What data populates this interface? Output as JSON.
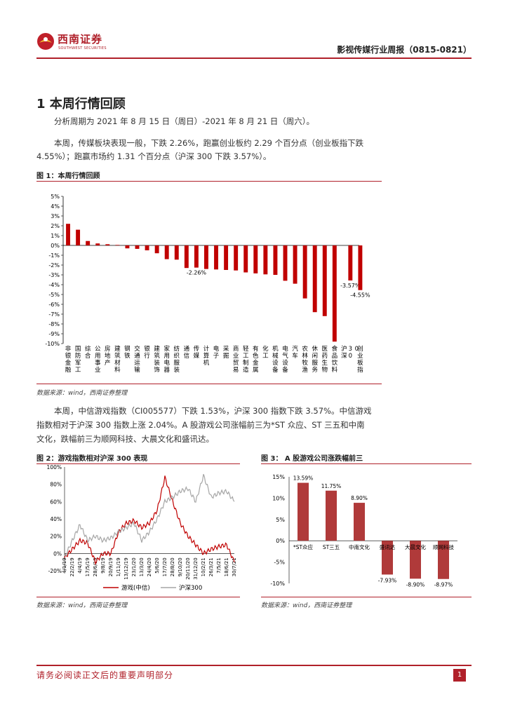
{
  "header": {
    "logo_cn": "西南证券",
    "logo_en": "SOUTHWEST SECURITIES",
    "report_title": "影视传媒行业周报（0815-0821）"
  },
  "section": {
    "title": "1 本周行情回顾",
    "para1": "分析周期为 2021 年 8 月 15 日（周日）-2021 年 8 月 21 日（周六）。",
    "para2_l1": "本周，传媒板块表现一般，下跌 2.26%，跑赢创业板约 2.29 个百分点（创业板指下跌",
    "para2_l2": "4.55%）；跑赢市场约 1.31 个百分点（沪深 300 下跌 3.57%）。",
    "para3_l1": "本周，中信游戏指数（CI005577）下跌 1.53%，沪深 300 指数下跌 3.57%。中信游戏",
    "para3_l2": "指数相对于沪深 300 指数上涨 2.04%。A 股游戏公司涨幅前三为*ST 众应、ST 三五和中南",
    "para3_l3": "文化，跌幅前三为顺网科技、大晨文化和盛讯达。"
  },
  "figures": {
    "fig1_caption": "图 1：本周行情回顾",
    "fig2_caption": "图 2：游戏指数相对沪深 300 表现",
    "fig3_caption": "图 3： A 股游戏公司涨跌幅前三",
    "source": "数据来源：wind，西南证券整理"
  },
  "footer": {
    "disclaimer": "请务必阅读正文后的重要声明部分",
    "page": "1"
  },
  "chart_data": [
    {
      "type": "bar",
      "title": "本周行情回顾",
      "categories": [
        "非银金融",
        "国防军工",
        "综合",
        "公用事业",
        "房地产",
        "建筑材料",
        "钢铁",
        "交通运输",
        "银行",
        "建筑装饰",
        "家用电器",
        "纺织服装",
        "通信",
        "传媒",
        "计算机",
        "电子",
        "采掘",
        "商业贸易",
        "轻工制造",
        "有色金属",
        "化工",
        "机械设备",
        "电气设备",
        "汽车",
        "农林牧渔",
        "休闲服务",
        "医药生物",
        "食品饮料",
        "沪深300",
        "创业板指"
      ],
      "values": [
        2.2,
        1.6,
        0.45,
        0.2,
        0.12,
        0.05,
        -0.3,
        -0.35,
        -0.5,
        -0.8,
        -1.4,
        -1.45,
        -2.3,
        -2.26,
        -2.4,
        -2.45,
        -2.5,
        -2.55,
        -2.75,
        -2.85,
        -2.95,
        -3.0,
        -3.6,
        -3.9,
        -5.4,
        -6.8,
        -7.2,
        -9.8,
        -3.57,
        -4.55
      ],
      "highlight_labels": {
        "13": "-2.26%",
        "28": "-3.57%",
        "29": "-4.55%"
      },
      "yticks": [
        "5%",
        "4%",
        "3%",
        "2%",
        "1%",
        "0%",
        "-1%",
        "-2%",
        "-3%",
        "-4%",
        "-5%",
        "-6%",
        "-7%",
        "-8%",
        "-9%",
        "-10%"
      ],
      "ylim": [
        -10,
        5
      ],
      "color": "#c00000"
    },
    {
      "type": "line",
      "title": "游戏指数相对沪深 300 表现",
      "x": [
        "4/1/19",
        "22/2/19",
        "4/4/19",
        "17/5/19",
        "28/6/19",
        "9/8/19",
        "20/9/19",
        "1/11/19",
        "13/12/19",
        "23/1/20",
        "13/3/20",
        "24/4/20",
        "5/6/20",
        "17/7/20",
        "28/8/20",
        "9/10/20",
        "20/11/20",
        "31/12/20",
        "10/2/21",
        "26/3/21",
        "7/5/21",
        "18/6/21",
        "30/7/21"
      ],
      "series": [
        {
          "name": "游戏(中信)",
          "color": "#c00000",
          "values": [
            -5,
            5,
            15,
            12,
            -10,
            0,
            0,
            25,
            35,
            38,
            30,
            35,
            50,
            88,
            60,
            35,
            20,
            10,
            0,
            5,
            8,
            10,
            -10
          ]
        },
        {
          "name": "沪深300",
          "color": "#a6a6a6",
          "values": [
            -5,
            15,
            33,
            15,
            20,
            15,
            18,
            25,
            30,
            35,
            15,
            25,
            40,
            60,
            65,
            72,
            75,
            60,
            90,
            65,
            70,
            72,
            60
          ]
        }
      ],
      "yticks": [
        "100%",
        "80%",
        "60%",
        "40%",
        "20%",
        "0%",
        "-20%"
      ],
      "ylim": [
        -20,
        100
      ]
    },
    {
      "type": "bar",
      "title": "A 股游戏公司涨跌幅前三",
      "categories": [
        "*ST众应",
        "ST三五",
        "中南文化",
        "盛讯达",
        "大晨文化",
        "顺网科技"
      ],
      "values": [
        13.59,
        11.75,
        8.9,
        -7.93,
        -8.9,
        -8.97
      ],
      "labels": [
        "13.59%",
        "11.75%",
        "8.90%",
        "-7.93%",
        "-8.90%",
        "-8.97%"
      ],
      "yticks": [
        "15%",
        "10%",
        "5%",
        "0%",
        "-5%",
        "-10%"
      ],
      "ylim": [
        -10,
        15
      ],
      "color": "#b03a3a"
    }
  ]
}
